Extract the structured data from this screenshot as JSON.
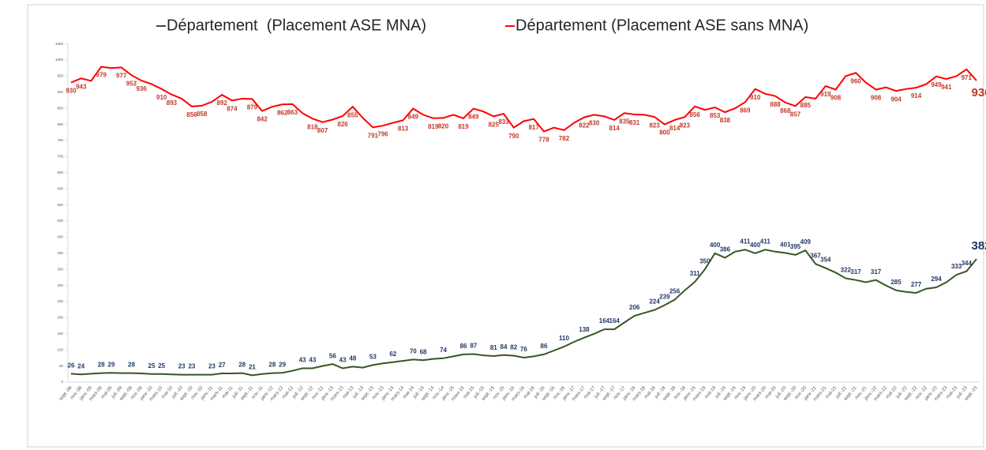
{
  "chart_data": {
    "type": "line",
    "categories": [
      "sept.-08",
      "nov.-08",
      "janv.-09",
      "mars-09",
      "mai-09",
      "juil.-09",
      "sept.-09",
      "nov.-09",
      "janv.-10",
      "mars-10",
      "mai-10",
      "juil.-10",
      "sept.-10",
      "nov.-10",
      "janv.-11",
      "mars-11",
      "mai-11",
      "juil.-11",
      "sept.-11",
      "nov.-11",
      "janv.-12",
      "mars-12",
      "mai-12",
      "juil.-12",
      "sept.-12",
      "nov.-12",
      "janv.-13",
      "mars-13",
      "mai-13",
      "juil.-13",
      "sept.-13",
      "nov.-13",
      "janv.-14",
      "mars-14",
      "mai-14",
      "juil.-14",
      "sept.-14",
      "nov.-14",
      "janv.-15",
      "mars-15",
      "mai-15",
      "juil.-15",
      "sept.-15",
      "nov.-15",
      "janv.-16",
      "mars-16",
      "mai-16",
      "juil.-16",
      "sept.-16",
      "nov.-16",
      "janv.-17",
      "mars-17",
      "mai-17",
      "juil.-17",
      "sept.-17",
      "nov.-17",
      "janv.-18",
      "mars-18",
      "mai-18",
      "juil.-18",
      "sept.-18",
      "nov.-18",
      "janv.-19",
      "mars-19",
      "mai-19",
      "juil.-19",
      "sept.-19",
      "nov.-19",
      "janv.-20",
      "mars-20",
      "mai-20",
      "juil.-20",
      "sept.-20",
      "nov.-20",
      "janv.-21",
      "mars-21",
      "mai-21",
      "juil.-21",
      "sept.-21",
      "nov.-21",
      "janv.-22",
      "mars-22",
      "mai-22",
      "juil.-22",
      "sept.-22",
      "nov.-22",
      "janv.-23",
      "mars-23",
      "mai-23",
      "juil.-23",
      "sept.-23"
    ],
    "series": [
      {
        "name": "Département  (Placement ASE MNA)",
        "color": "#375623",
        "label_color": "#1f3864",
        "values": [
          26,
          24,
          26,
          28,
          29,
          28,
          28,
          27,
          25,
          25,
          24,
          23,
          23,
          23,
          23,
          27,
          27,
          28,
          21,
          25,
          28,
          29,
          35,
          43,
          43,
          50,
          56,
          43,
          48,
          45,
          53,
          58,
          62,
          66,
          70,
          68,
          72,
          74,
          80,
          86,
          87,
          83,
          81,
          84,
          82,
          76,
          80,
          86,
          98,
          110,
          125,
          138,
          150,
          164,
          164,
          185,
          206,
          215,
          224,
          239,
          256,
          285,
          311,
          350,
          400,
          386,
          405,
          411,
          400,
          411,
          405,
          401,
          395,
          409,
          367,
          354,
          340,
          322,
          317,
          310,
          317,
          300,
          285,
          280,
          277,
          290,
          294,
          310,
          333,
          344,
          382
        ],
        "value_labels": [
          "26",
          "24",
          null,
          "28",
          "29",
          null,
          "28",
          null,
          "25",
          "25",
          null,
          "23",
          "23",
          null,
          "23",
          "27",
          null,
          "28",
          "21",
          null,
          "28",
          "29",
          null,
          "43",
          "43",
          null,
          "56",
          "43",
          "48",
          null,
          "53",
          null,
          "62",
          null,
          "70",
          "68",
          null,
          "74",
          null,
          "86",
          "87",
          null,
          "81",
          "84",
          "82",
          "76",
          null,
          "86",
          null,
          "110",
          null,
          "138",
          null,
          "164",
          "164",
          null,
          "206",
          null,
          "224",
          "239",
          "256",
          null,
          "311",
          "350",
          "400",
          "386",
          null,
          "411",
          "400",
          "411",
          null,
          "401",
          "395",
          "409",
          "367",
          "354",
          null,
          "322",
          "317",
          null,
          "317",
          null,
          "285",
          null,
          "277",
          null,
          "294",
          null,
          "333",
          "344",
          "382"
        ]
      },
      {
        "name": "Département (Placement ASE sans MNA)",
        "color": "#ff0000",
        "label_color": "#c0392b",
        "values": [
          930,
          943,
          935,
          979,
          975,
          977,
          953,
          936,
          925,
          910,
          893,
          880,
          856,
          858,
          870,
          892,
          874,
          880,
          879,
          842,
          855,
          862,
          863,
          835,
          818,
          807,
          815,
          826,
          855,
          820,
          791,
          796,
          805,
          813,
          849,
          830,
          819,
          820,
          830,
          819,
          849,
          840,
          825,
          833,
          790,
          810,
          817,
          778,
          790,
          782,
          805,
          822,
          830,
          825,
          814,
          835,
          831,
          830,
          823,
          800,
          814,
          823,
          856,
          845,
          853,
          838,
          850,
          869,
          910,
          895,
          888,
          868,
          857,
          885,
          880,
          919,
          908,
          950,
          960,
          930,
          908,
          915,
          904,
          910,
          914,
          925,
          949,
          941,
          950,
          971,
          936
        ],
        "value_labels": [
          "930",
          "943",
          null,
          "979",
          null,
          "977",
          "953",
          "936",
          null,
          "910",
          "893",
          null,
          "856",
          "858",
          null,
          "892",
          "874",
          null,
          "879",
          "842",
          null,
          "862",
          "863",
          null,
          "818",
          "807",
          null,
          "826",
          "855",
          null,
          "791",
          "796",
          null,
          "813",
          "849",
          null,
          "819",
          "820",
          null,
          "819",
          "849",
          null,
          "825",
          "833",
          "790",
          null,
          "817",
          "778",
          null,
          "782",
          null,
          "822",
          "830",
          null,
          "814",
          "835",
          "831",
          null,
          "823",
          "800",
          "814",
          "823",
          "856",
          null,
          "853",
          "838",
          null,
          "869",
          "910",
          null,
          "888",
          "868",
          "857",
          "885",
          null,
          "919",
          "908",
          null,
          "960",
          null,
          "908",
          null,
          "904",
          null,
          "914",
          null,
          "949",
          "941",
          null,
          "971",
          "936"
        ]
      }
    ],
    "ylim": [
      0,
      1050
    ],
    "yticks": [
      0,
      50,
      100,
      150,
      200,
      250,
      300,
      350,
      400,
      450,
      500,
      550,
      600,
      650,
      700,
      750,
      800,
      850,
      900,
      950,
      1000,
      1050
    ],
    "legend": "top"
  }
}
